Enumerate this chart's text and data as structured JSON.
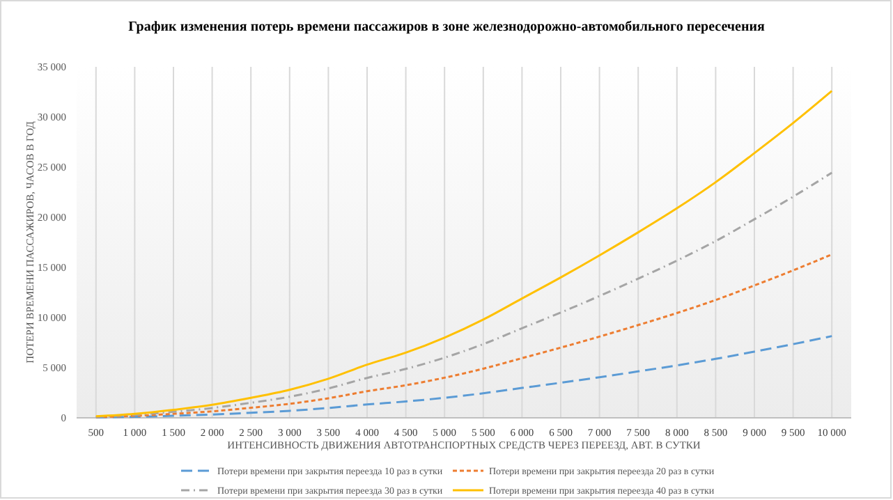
{
  "chart_data": {
    "type": "line",
    "title": "График изменения потерь времени пассажиров в зоне железнодорожно-автомобильного пересечения",
    "xlabel": "ИНТЕНСИВНОСТЬ ДВИЖЕНИЯ АВТОТРАНСПОРТНЫХ СРЕДСТВ ЧЕРЕЗ ПЕРЕЕЗД, АВТ. В СУТКИ",
    "ylabel": "ПОТЕРИ ВРЕМЕНИ ПАССАЖИРОВ, ЧАСОВ В ГОД",
    "categories": [
      "500",
      "1 000",
      "1 500",
      "2 000",
      "2 500",
      "3 000",
      "3 500",
      "4 000",
      "4 500",
      "5 000",
      "5 500",
      "6 000",
      "6 500",
      "7 000",
      "7 500",
      "8 000",
      "8 500",
      "9 000",
      "9 500",
      "10 000"
    ],
    "series": [
      {
        "name": "Потери времени при закрытия переезда 10 раз в сутки",
        "color": "#5b9bd5",
        "line_style": "dashed",
        "values": [
          40,
          100,
          200,
          330,
          500,
          700,
          980,
          1330,
          1630,
          2000,
          2450,
          2980,
          3500,
          4050,
          4630,
          5230,
          5880,
          6600,
          7350,
          8150
        ]
      },
      {
        "name": "Потери времени при закрытия переезда 20 раз в сутки",
        "color": "#ed7d31",
        "line_style": "dotted",
        "values": [
          75,
          200,
          400,
          650,
          1000,
          1400,
          1950,
          2650,
          3250,
          4000,
          4900,
          5950,
          7000,
          8100,
          9250,
          10450,
          11750,
          13200,
          14700,
          16300
        ]
      },
      {
        "name": "Потери времени при закрытия переезда 30 раз в сутки",
        "color": "#a5a5a5",
        "line_style": "dashdot",
        "values": [
          110,
          300,
          600,
          980,
          1500,
          2100,
          2930,
          3980,
          4880,
          6000,
          7350,
          8930,
          10500,
          12150,
          13880,
          15680,
          17630,
          19800,
          22050,
          24450
        ]
      },
      {
        "name": "Потери времени при закрытия переезда 40 раз в сутки",
        "color": "#ffc000",
        "line_style": "solid",
        "values": [
          150,
          400,
          800,
          1300,
          2000,
          2800,
          3900,
          5300,
          6500,
          8000,
          9800,
          11900,
          14000,
          16200,
          18500,
          20900,
          23500,
          26400,
          29400,
          32600
        ]
      }
    ],
    "ylim": [
      0,
      35000
    ],
    "yticks": [
      0,
      {
        "value": 5000,
        "label": "5 000"
      },
      {
        "value": 10000,
        "label": "10 000"
      },
      {
        "value": 15000,
        "label": "15 000"
      },
      {
        "value": 20000,
        "label": "20 000"
      },
      {
        "value": 25000,
        "label": "25 000"
      },
      {
        "value": 30000,
        "label": "30 000"
      },
      {
        "value": 35000,
        "label": "35 000"
      }
    ],
    "grid": "x",
    "legend": "bottom",
    "marker": "none"
  }
}
